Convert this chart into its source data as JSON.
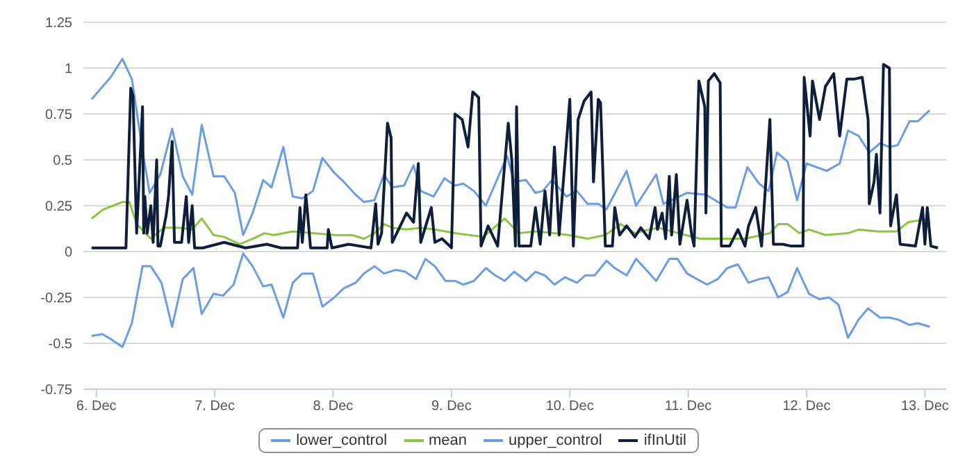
{
  "chart_data": {
    "type": "line",
    "xlim": [
      "--12-05T21:22",
      "--12-13T04:19"
    ],
    "xticks": [
      {
        "value": "--12-06",
        "label": "6. Dec"
      },
      {
        "value": "--12-07",
        "label": "7. Dec"
      },
      {
        "value": "--12-08",
        "label": "8. Dec"
      },
      {
        "value": "--12-09",
        "label": "9. Dec"
      },
      {
        "value": "--12-10",
        "label": "10. Dec"
      },
      {
        "value": "--12-11",
        "label": "11. Dec"
      },
      {
        "value": "--12-12",
        "label": "12. Dec"
      },
      {
        "value": "--12-13",
        "label": "13. Dec"
      }
    ],
    "ylim": [
      -0.75,
      1.25
    ],
    "yticks": [
      -0.75,
      -0.5,
      -0.25,
      0,
      0.25,
      0.5,
      0.75,
      1,
      1.25
    ],
    "grid": "y",
    "legend": "bottom",
    "series": [
      {
        "name": "lower_control",
        "color": "#6a9be3",
        "x": [
          "--12-05T23:02",
          "--12-06T01:12",
          "--12-06T03:07",
          "--12-06T05:17",
          "--12-06T07:12",
          "--12-06T09:22",
          "--12-06T11:02",
          "--12-06T13:12",
          "--12-06T15:22",
          "--12-06T17:31",
          "--12-06T19:41",
          "--12-06T21:22",
          "--12-06T23:46",
          "--12-07T01:41",
          "--12-07T03:50",
          "--12-07T05:46",
          "--12-07T07:41",
          "--12-07T09:50",
          "--12-07T11:31",
          "--12-07T13:55",
          "--12-07T15:50",
          "--12-07T17:46",
          "--12-07T19:55",
          "--12-07T21:50",
          "--12-08T00:14",
          "--12-08T02:10",
          "--12-08T04:34",
          "--12-08T06:14",
          "--12-08T08:24",
          "--12-08T10:19",
          "--12-08T12:43",
          "--12-08T14:38",
          "--12-08T16:48",
          "--12-08T18:43",
          "--12-08T20:38",
          "--12-08T22:48",
          "--12-09T00:43",
          "--12-09T02:24",
          "--12-09T04:34",
          "--12-09T06:58",
          "--12-09T08:53",
          "--12-09T10:48",
          "--12-09T12:43",
          "--12-09T15:07",
          "--12-09T17:02",
          "--12-09T18:58",
          "--12-09T20:53",
          "--12-09T23:02",
          "--12-10T01:26",
          "--12-10T03:07",
          "--12-10T05:02",
          "--12-10T07:26",
          "--12-10T09:07",
          "--12-10T11:31",
          "--12-10T13:26",
          "--12-10T15:50",
          "--12-10T17:31",
          "--12-10T20:10",
          "--12-10T21:50",
          "--12-10T23:46",
          "--12-11T03:50",
          "--12-11T06:00",
          "--12-11T07:55",
          "--12-11T10:05",
          "--12-11T12:14",
          "--12-11T14:24",
          "--12-11T16:19",
          "--12-11T18:14",
          "--12-11T20:10",
          "--12-11T22:05",
          "--12-12T00:29",
          "--12-12T02:38",
          "--12-12T04:34",
          "--12-12T06:29",
          "--12-12T08:24",
          "--12-12T10:34",
          "--12-12T12:29",
          "--12-12T14:53",
          "--12-12T16:48",
          "--12-12T18:29",
          "--12-12T20:53",
          "--12-12T22:34",
          "--12-13T00:58"
        ],
        "values": [
          -0.46,
          -0.45,
          -0.48,
          -0.52,
          -0.39,
          -0.08,
          -0.08,
          -0.17,
          -0.41,
          -0.15,
          -0.09,
          -0.34,
          -0.23,
          -0.24,
          -0.18,
          -0.01,
          -0.08,
          -0.19,
          -0.18,
          -0.36,
          -0.17,
          -0.12,
          -0.12,
          -0.3,
          -0.25,
          -0.2,
          -0.17,
          -0.12,
          -0.08,
          -0.12,
          -0.1,
          -0.11,
          -0.15,
          -0.04,
          -0.08,
          -0.16,
          -0.16,
          -0.18,
          -0.16,
          -0.09,
          -0.13,
          -0.16,
          -0.11,
          -0.16,
          -0.11,
          -0.13,
          -0.18,
          -0.14,
          -0.17,
          -0.13,
          -0.13,
          -0.05,
          -0.09,
          -0.13,
          -0.04,
          -0.11,
          -0.16,
          -0.04,
          -0.04,
          -0.12,
          -0.18,
          -0.15,
          -0.09,
          -0.07,
          -0.17,
          -0.15,
          -0.14,
          -0.25,
          -0.22,
          -0.09,
          -0.23,
          -0.26,
          -0.25,
          -0.29,
          -0.47,
          -0.37,
          -0.31,
          -0.36,
          -0.36,
          -0.37,
          -0.4,
          -0.39,
          -0.41
        ]
      },
      {
        "name": "mean",
        "color": "#8cc541",
        "x": [
          "--12-05T23:02",
          "--12-06T01:26",
          "--12-06T03:22",
          "--12-06T05:17",
          "--12-06T06:43",
          "--12-06T08:10",
          "--12-06T11:02",
          "--12-06T13:41",
          "--12-06T16:48",
          "--12-06T19:26",
          "--12-06T21:22",
          "--12-06T23:46",
          "--12-07T01:55",
          "--12-07T05:02",
          "--12-07T07:41",
          "--12-07T10:05",
          "--12-07T12:00",
          "--12-07T15:50",
          "--12-07T19:55",
          "--12-08T00:29",
          "--12-08T03:50",
          "--12-08T06:14",
          "--12-08T07:41",
          "--12-08T08:24",
          "--12-08T10:19",
          "--12-08T12:00",
          "--12-08T14:53",
          "--12-08T17:46",
          "--12-08T20:38",
          "--12-09T00:43",
          "--12-09T06:29",
          "--12-09T10:48",
          "--12-09T13:41",
          "--12-09T17:02",
          "--12-09T20:53",
          "--12-09T23:46",
          "--12-10T03:36",
          "--12-10T07:12",
          "--12-10T10:19",
          "--12-10T13:12",
          "--12-10T16:05",
          "--12-10T18:00",
          "--12-10T22:05",
          "--12-11T02:24",
          "--12-11T06:29",
          "--12-11T11:31",
          "--12-11T16:34",
          "--12-11T18:14",
          "--12-11T20:10",
          "--12-11T22:34",
          "--12-12T00:29",
          "--12-12T03:50",
          "--12-12T08:24",
          "--12-12T10:34",
          "--12-12T14:10",
          "--12-12T18:14",
          "--12-12T20:38",
          "--12-12T22:48",
          "--12-13T00:58"
        ],
        "values": [
          0.18,
          0.23,
          0.25,
          0.27,
          0.27,
          0.15,
          0.07,
          0.13,
          0.13,
          0.12,
          0.18,
          0.09,
          0.08,
          0.04,
          0.07,
          0.1,
          0.09,
          0.11,
          0.1,
          0.09,
          0.09,
          0.07,
          0.09,
          0.1,
          0.15,
          0.13,
          0.12,
          0.13,
          0.12,
          0.1,
          0.08,
          0.18,
          0.1,
          0.11,
          0.1,
          0.09,
          0.07,
          0.09,
          0.15,
          0.1,
          0.12,
          0.13,
          0.1,
          0.07,
          0.07,
          0.07,
          0.1,
          0.15,
          0.15,
          0.1,
          0.12,
          0.09,
          0.1,
          0.12,
          0.11,
          0.11,
          0.16,
          0.17,
          0.18
        ]
      },
      {
        "name": "upper_control",
        "color": "#6a9be3",
        "x": [
          "--12-05T23:02",
          "--12-06T02:53",
          "--12-06T05:17",
          "--12-06T07:12",
          "--12-06T09:22",
          "--12-06T10:48",
          "--12-06T12:58",
          "--12-06T15:22",
          "--12-06T17:31",
          "--12-06T19:26",
          "--12-06T21:22",
          "--12-06T23:46",
          "--12-07T01:55",
          "--12-07T04:05",
          "--12-07T05:46",
          "--12-07T07:41",
          "--12-07T09:50",
          "--12-07T11:31",
          "--12-07T13:55",
          "--12-07T15:50",
          "--12-07T17:46",
          "--12-07T19:55",
          "--12-07T21:50",
          "--12-08T00:14",
          "--12-08T02:10",
          "--12-08T04:34",
          "--12-08T06:14",
          "--12-08T08:24",
          "--12-08T10:19",
          "--12-08T12:00",
          "--12-08T14:24",
          "--12-08T16:19",
          "--12-08T17:46",
          "--12-08T20:24",
          "--12-08T22:34",
          "--12-09T00:43",
          "--12-09T02:24",
          "--12-09T04:34",
          "--12-09T06:58",
          "--12-09T11:17",
          "--12-09T12:43",
          "--12-09T15:07",
          "--12-09T17:02",
          "--12-09T18:29",
          "--12-09T20:24",
          "--12-09T23:17",
          "--12-10T01:26",
          "--12-10T03:36",
          "--12-10T05:46",
          "--12-10T07:26",
          "--12-10T11:31",
          "--12-10T13:26",
          "--12-10T17:31",
          "--12-10T18:58",
          "--12-10T23:46",
          "--12-11T03:36",
          "--12-11T07:55",
          "--12-11T09:36",
          "--12-11T12:00",
          "--12-11T14:24",
          "--12-11T16:19",
          "--12-11T18:00",
          "--12-11T20:10",
          "--12-11T22:05",
          "--12-12T00:00",
          "--12-12T04:05",
          "--12-12T06:43",
          "--12-12T08:24",
          "--12-12T10:34",
          "--12-12T12:43",
          "--12-12T14:53",
          "--12-12T16:48",
          "--12-12T18:29",
          "--12-12T20:53",
          "--12-12T22:34",
          "--12-13T00:58"
        ],
        "values": [
          0.83,
          0.95,
          1.05,
          0.94,
          0.55,
          0.32,
          0.42,
          0.67,
          0.41,
          0.31,
          0.69,
          0.41,
          0.41,
          0.32,
          0.09,
          0.21,
          0.39,
          0.35,
          0.57,
          0.3,
          0.29,
          0.33,
          0.51,
          0.43,
          0.38,
          0.31,
          0.27,
          0.28,
          0.42,
          0.35,
          0.36,
          0.47,
          0.33,
          0.3,
          0.4,
          0.36,
          0.37,
          0.33,
          0.25,
          0.52,
          0.38,
          0.39,
          0.32,
          0.33,
          0.39,
          0.3,
          0.33,
          0.26,
          0.26,
          0.23,
          0.44,
          0.25,
          0.42,
          0.26,
          0.32,
          0.31,
          0.24,
          0.24,
          0.46,
          0.37,
          0.33,
          0.54,
          0.49,
          0.28,
          0.48,
          0.44,
          0.48,
          0.66,
          0.63,
          0.54,
          0.59,
          0.57,
          0.58,
          0.71,
          0.71,
          0.77
        ]
      },
      {
        "name": "ifInUtil",
        "color": "#0e1f3b",
        "x": [
          "--12-05T23:02",
          "--12-06T06:00",
          "--12-06T06:58",
          "--12-06T07:26",
          "--12-06T08:10",
          "--12-06T09:22",
          "--12-06T09:36",
          "--12-06T09:50",
          "--12-06T10:19",
          "--12-06T11:02",
          "--12-06T11:31",
          "--12-06T12:14",
          "--12-06T12:29",
          "--12-06T12:58",
          "--12-06T14:10",
          "--12-06T14:38",
          "--12-06T15:22",
          "--12-06T15:50",
          "--12-06T17:17",
          "--12-06T18:14",
          "--12-06T18:43",
          "--12-06T19:26",
          "--12-06T19:55",
          "--12-06T21:36",
          "--12-07T01:55",
          "--12-07T06:14",
          "--12-07T10:34",
          "--12-07T13:26",
          "--12-07T16:48",
          "--12-07T17:17",
          "--12-07T17:46",
          "--12-07T18:29",
          "--12-07T19:26",
          "--12-07T22:48",
          "--12-07T23:02",
          "--12-07T23:46",
          "--12-08T03:07",
          "--12-08T07:41",
          "--12-08T08:38",
          "--12-08T09:07",
          "--12-08T09:50",
          "--12-08T11:02",
          "--12-08T11:46",
          "--12-08T12:00",
          "--12-08T14:53",
          "--12-08T16:19",
          "--12-08T17:17",
          "--12-08T17:46",
          "--12-08T19:55",
          "--12-08T20:38",
          "--12-08T22:05",
          "--12-08T23:17",
          "--12-09T00:00",
          "--12-09T00:43",
          "--12-09T02:10",
          "--12-09T03:22",
          "--12-09T04:19",
          "--12-09T05:31",
          "--12-09T06:00",
          "--12-09T07:26",
          "--12-09T09:22",
          "--12-09T11:31",
          "--12-09T12:14",
          "--12-09T12:58",
          "--12-09T13:12",
          "--12-09T13:41",
          "--12-09T16:05",
          "--12-09T17:02",
          "--12-09T18:00",
          "--12-09T18:58",
          "--12-09T19:55",
          "--12-09T20:53",
          "--12-09T21:50",
          "--12-10T00:00",
          "--12-10T00:43",
          "--12-10T01:41",
          "--12-10T02:53",
          "--12-10T04:19",
          "--12-10T04:48",
          "--12-10T05:46",
          "--12-10T06:14",
          "--12-10T07:12",
          "--12-10T08:38",
          "--12-10T09:07",
          "--12-10T10:05",
          "--12-10T11:31",
          "--12-10T13:12",
          "--12-10T14:24",
          "--12-10T16:05",
          "--12-10T17:17",
          "--12-10T17:46",
          "--12-10T18:43",
          "--12-10T19:26",
          "--12-10T20:10",
          "--12-10T20:38",
          "--12-10T21:36",
          "--12-10T22:19",
          "--12-10T23:46",
          "--12-11T00:43",
          "--12-11T01:12",
          "--12-11T02:10",
          "--12-11T03:22",
          "--12-11T03:36",
          "--12-11T04:05",
          "--12-11T05:17",
          "--12-11T06:29",
          "--12-11T06:43",
          "--12-11T08:24",
          "--12-11T10:05",
          "--12-11T11:31",
          "--12-11T12:14",
          "--12-11T13:41",
          "--12-11T14:53",
          "--12-11T16:34",
          "--12-11T17:17",
          "--12-11T19:12",
          "--12-11T20:53",
          "--12-11T23:17",
          "--12-11T23:31",
          "--12-12T00:43",
          "--12-12T01:12",
          "--12-12T02:38",
          "--12-12T03:50",
          "--12-12T05:31",
          "--12-12T06:43",
          "--12-12T08:10",
          "--12-12T09:36",
          "--12-12T11:17",
          "--12-12T12:29",
          "--12-12T12:43",
          "--12-12T13:41",
          "--12-12T14:10",
          "--12-12T14:53",
          "--12-12T15:36",
          "--12-12T16:48",
          "--12-12T17:02",
          "--12-12T18:14",
          "--12-12T18:58",
          "--12-12T22:05",
          "--12-12T23:31",
          "--12-13T00:00",
          "--12-13T00:29",
          "--12-13T01:12",
          "--12-13T02:38"
        ],
        "values": [
          0.02,
          0.02,
          0.89,
          0.85,
          0.1,
          0.79,
          0.1,
          0.3,
          0.1,
          0.25,
          0.05,
          0.5,
          0.03,
          0.03,
          0.2,
          0.3,
          0.6,
          0.05,
          0.05,
          0.3,
          0.05,
          0.25,
          0.02,
          0.02,
          0.05,
          0.02,
          0.04,
          0.02,
          0.02,
          0.24,
          0.05,
          0.31,
          0.02,
          0.02,
          0.12,
          0.02,
          0.04,
          0.02,
          0.26,
          0.04,
          0.1,
          0.7,
          0.62,
          0.05,
          0.21,
          0.16,
          0.48,
          0.05,
          0.24,
          0.05,
          0.07,
          0.04,
          0.02,
          0.75,
          0.72,
          0.57,
          0.87,
          0.84,
          0.03,
          0.14,
          0.03,
          0.7,
          0.5,
          0.03,
          0.79,
          0.03,
          0.03,
          0.24,
          0.04,
          0.33,
          0.09,
          0.57,
          0.09,
          0.83,
          0.03,
          0.72,
          0.82,
          0.87,
          0.38,
          0.83,
          0.81,
          0.03,
          0.03,
          0.24,
          0.09,
          0.14,
          0.08,
          0.13,
          0.07,
          0.24,
          0.12,
          0.21,
          0.07,
          0.41,
          0.09,
          0.42,
          0.04,
          0.28,
          0.09,
          0.03,
          0.93,
          0.79,
          0.21,
          0.93,
          0.97,
          0.92,
          0.03,
          0.03,
          0.12,
          0.03,
          0.14,
          0.24,
          0.03,
          0.72,
          0.04,
          0.04,
          0.03,
          0.03,
          0.95,
          0.63,
          0.93,
          0.72,
          0.9,
          0.97,
          0.63,
          0.94,
          0.94,
          0.95,
          0.72,
          0.26,
          0.38,
          0.53,
          0.21,
          1.02,
          1.0,
          0.14,
          0.31,
          0.04,
          0.03,
          0.24,
          0.04,
          0.24,
          0.03,
          0.02
        ]
      }
    ]
  }
}
